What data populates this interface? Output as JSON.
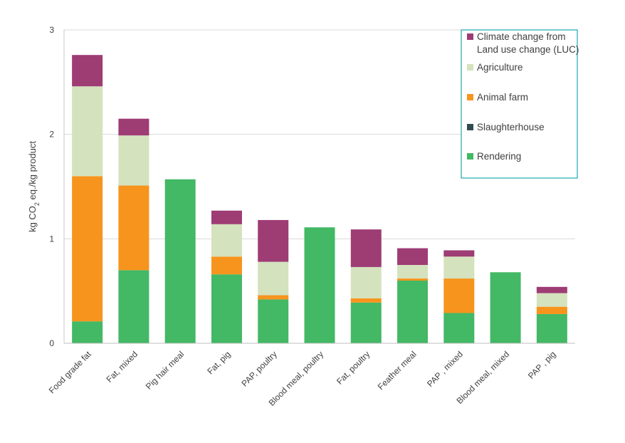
{
  "chart_data": {
    "type": "bar",
    "stacked": true,
    "title": "",
    "xlabel": "",
    "ylabel": {
      "prefix": "kg CO",
      "subscript": "2",
      "suffix": " eq./kg product"
    },
    "ylim": [
      0,
      3
    ],
    "yticks": [
      "0",
      "1",
      "2",
      "3"
    ],
    "categories": [
      "Food grade fat",
      "Fat, mixed",
      "Pig hair meal",
      "Fat, pig",
      "PAP, poultry",
      "Blood meal, poultry",
      "Fat, poultry",
      "Feather meal",
      "PAP , mixed",
      "Blood meal, mixed",
      "PAP , pig"
    ],
    "series": [
      {
        "name": "Rendering",
        "color": "#43b865",
        "values": [
          0.21,
          0.7,
          1.57,
          0.66,
          0.42,
          1.11,
          0.39,
          0.6,
          0.29,
          0.68,
          0.28
        ]
      },
      {
        "name": "Slaughterhouse",
        "color": "#2f4b4f",
        "values": [
          0,
          0,
          0,
          0,
          0,
          0,
          0,
          0,
          0,
          0,
          0
        ]
      },
      {
        "name": "Animal farm",
        "color": "#f7941d",
        "values": [
          1.39,
          0.81,
          0,
          0.17,
          0.04,
          0,
          0.04,
          0.02,
          0.33,
          0,
          0.07
        ]
      },
      {
        "name": "Agriculture",
        "color": "#d4e2bd",
        "values": [
          0.86,
          0.48,
          0,
          0.31,
          0.32,
          0,
          0.3,
          0.13,
          0.21,
          0,
          0.13
        ]
      },
      {
        "name": "Climate change from Land use change (LUC)",
        "legend_lines": [
          "Climate change from",
          "Land use change (LUC)"
        ],
        "color": "#9e3c74",
        "values": [
          0.3,
          0.16,
          0,
          0.13,
          0.4,
          0,
          0.36,
          0.16,
          0.06,
          0,
          0.06
        ]
      }
    ],
    "legend_order": [
      "Climate change from Land use change (LUC)",
      "Agriculture",
      "Animal farm",
      "Slaughterhouse",
      "Rendering"
    ],
    "legend_position": "top-right",
    "legend_border_color": "#1ba8b0",
    "grid": true
  }
}
